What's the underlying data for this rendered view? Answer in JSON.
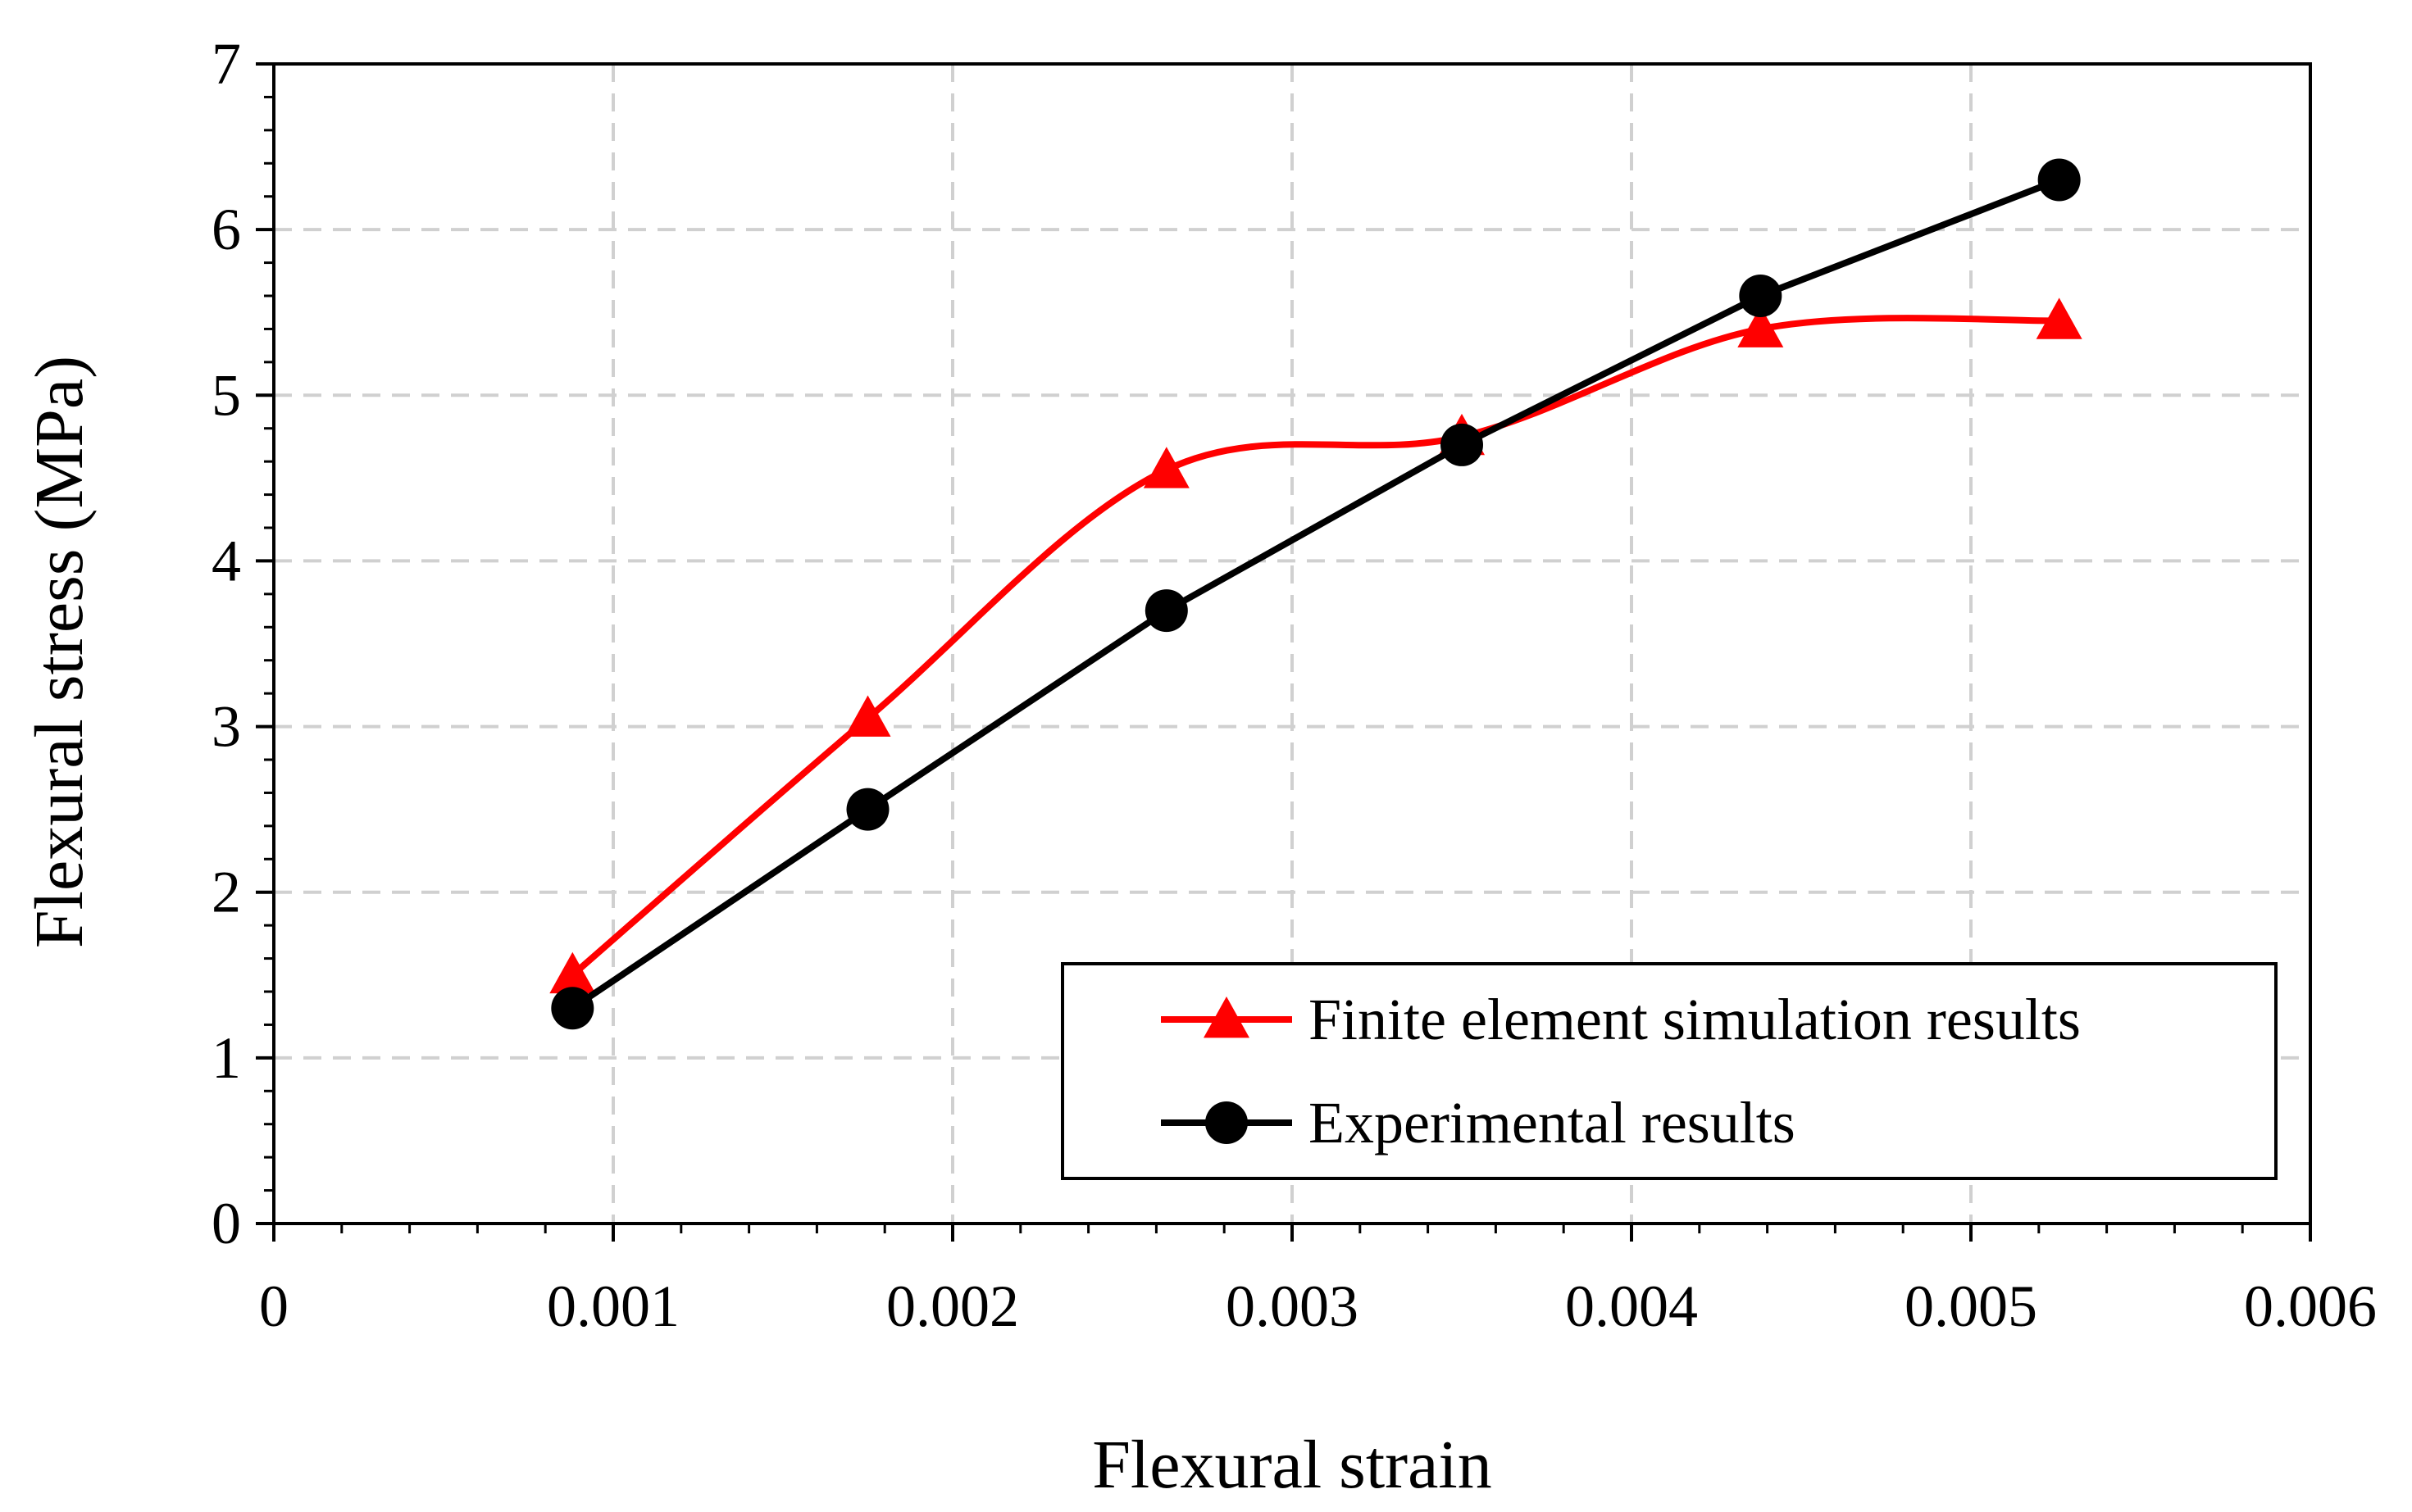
{
  "chart_data": {
    "type": "line",
    "title": "",
    "xlabel": "Flexural strain",
    "ylabel": "Flexural stress (MPa)",
    "xlim": [
      0,
      0.006
    ],
    "ylim": [
      0,
      7
    ],
    "xticks": [
      0,
      0.001,
      0.002,
      0.003,
      0.004,
      0.005,
      0.006
    ],
    "xtick_labels": [
      "0",
      "0.001",
      "0.002",
      "0.003",
      "0.004",
      "0.005",
      "0.006"
    ],
    "yticks": [
      0,
      1,
      2,
      3,
      4,
      5,
      6,
      7
    ],
    "ytick_labels": [
      "0",
      "1",
      "2",
      "3",
      "4",
      "5",
      "6",
      "7"
    ],
    "grid": true,
    "legend_position": "bottom-right",
    "series": [
      {
        "name": "Finite element simulation results",
        "color": "#ff0000",
        "marker": "triangle",
        "smooth": true,
        "x": [
          0.00088,
          0.00175,
          0.00263,
          0.0035,
          0.00438,
          0.00526
        ],
        "y": [
          1.5,
          3.05,
          4.55,
          4.75,
          5.4,
          5.45
        ]
      },
      {
        "name": "Experimental results",
        "color": "#000000",
        "marker": "circle",
        "smooth": false,
        "x": [
          0.00088,
          0.00175,
          0.00263,
          0.0035,
          0.00438,
          0.00526
        ],
        "y": [
          1.3,
          2.5,
          3.7,
          4.7,
          5.6,
          6.3
        ]
      }
    ]
  }
}
